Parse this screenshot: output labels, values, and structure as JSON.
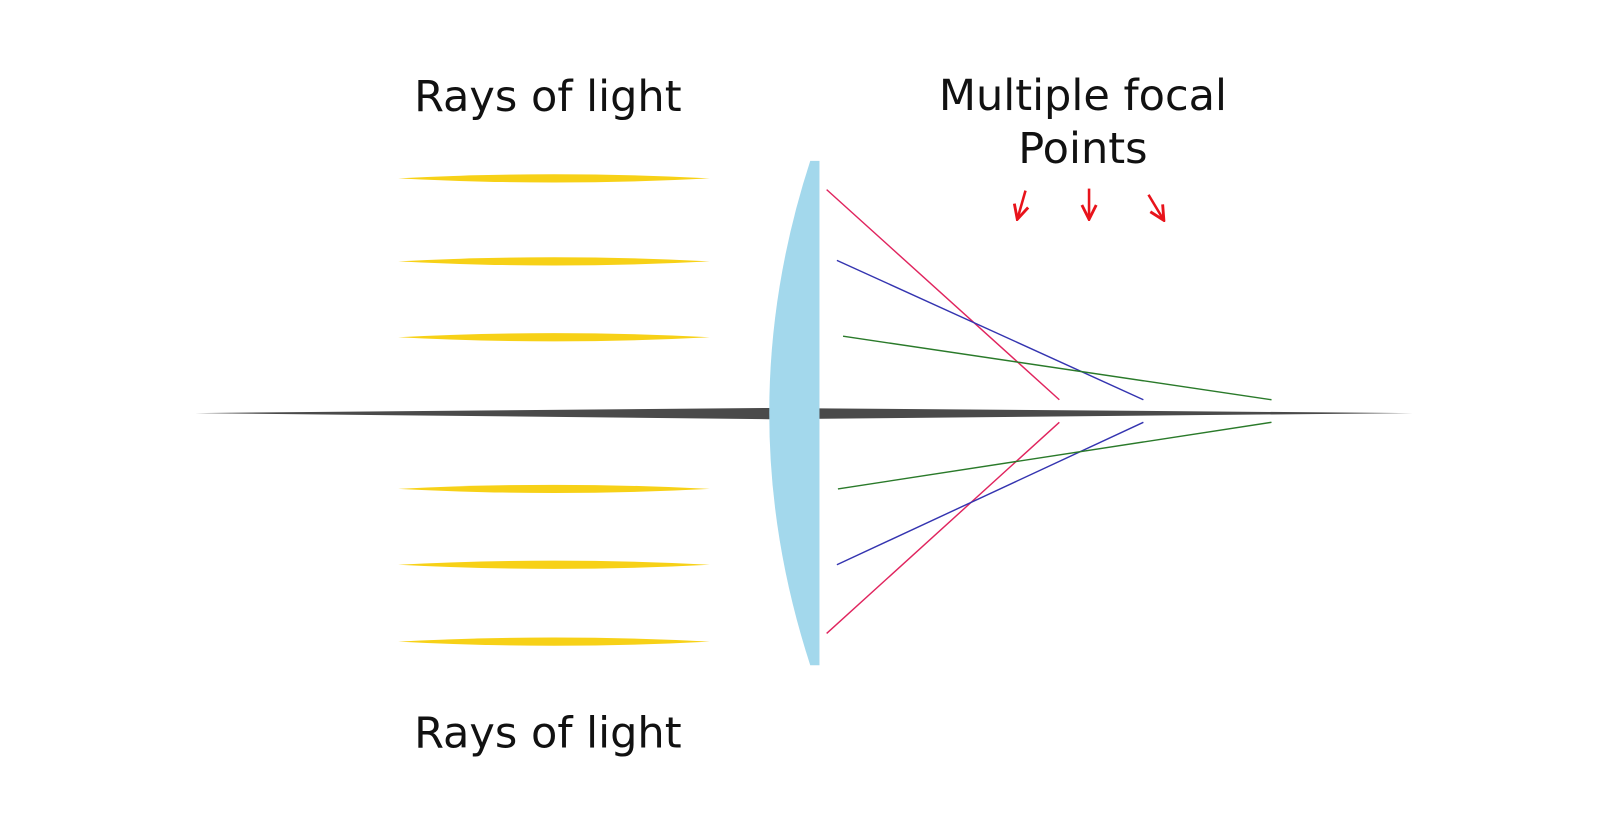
{
  "labels": {
    "top_rays": "Rays of light",
    "focal_line1": "Multiple focal",
    "focal_line2": "Points",
    "bottom_rays": "Rays of light"
  }
}
